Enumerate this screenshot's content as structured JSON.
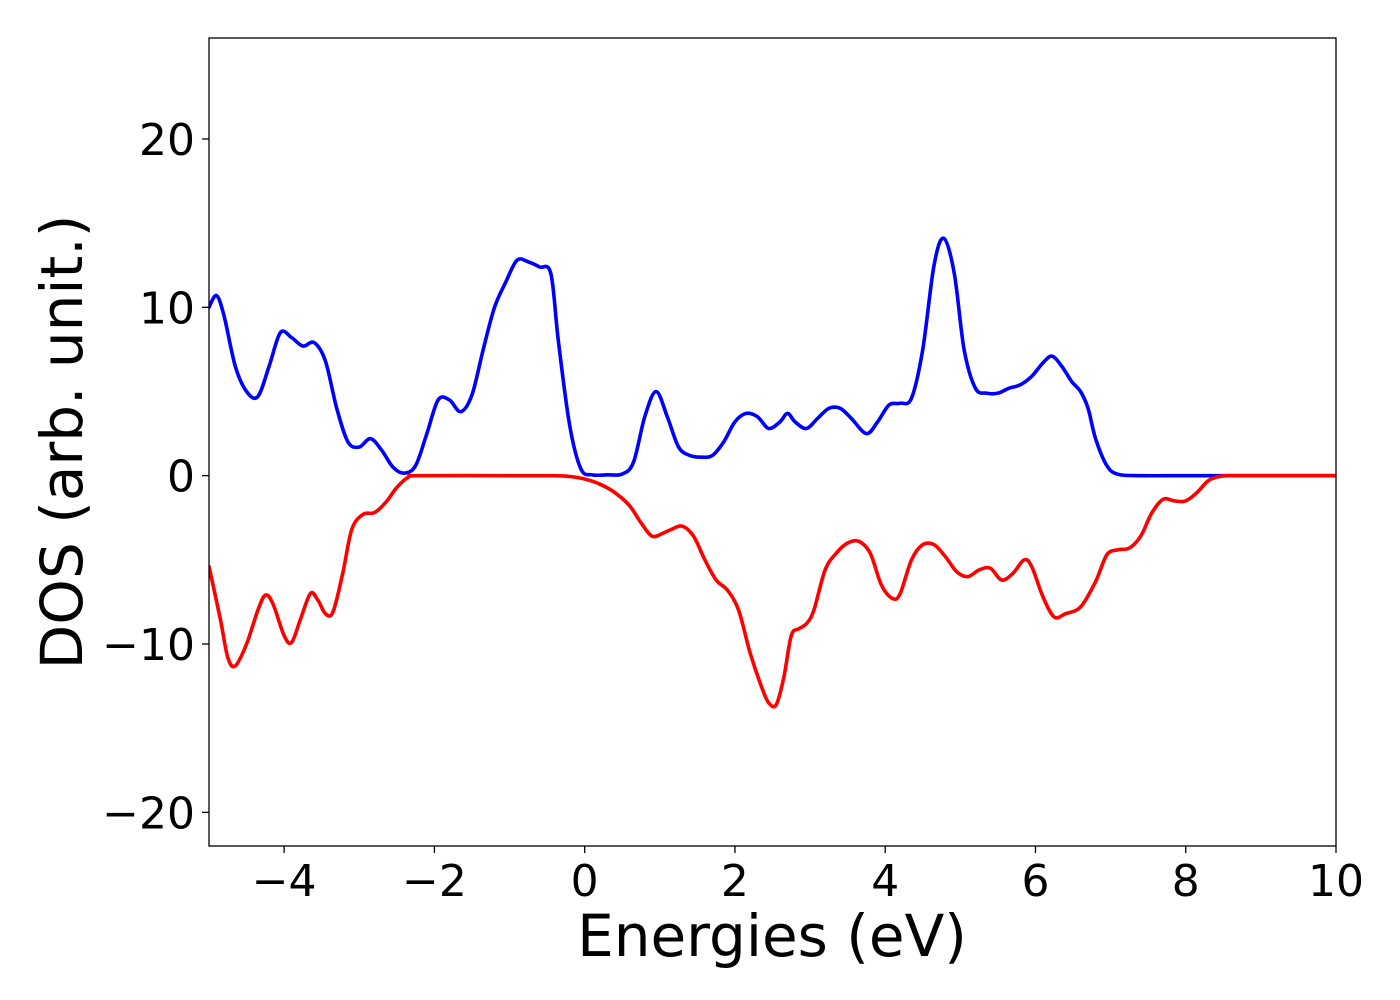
{
  "chart_data": {
    "type": "line",
    "title": "",
    "xlabel": "Energies (eV)",
    "ylabel": "DOS (arb. unit.)",
    "xlim": [
      -5,
      10
    ],
    "ylim": [
      -22,
      26
    ],
    "x_ticks": [
      {
        "value": -4,
        "label": "−4"
      },
      {
        "value": -2,
        "label": "−2"
      },
      {
        "value": 0,
        "label": "0"
      },
      {
        "value": 2,
        "label": "2"
      },
      {
        "value": 4,
        "label": "4"
      },
      {
        "value": 6,
        "label": "6"
      },
      {
        "value": 8,
        "label": "8"
      },
      {
        "value": 10,
        "label": "10"
      }
    ],
    "y_ticks": [
      {
        "value": 20,
        "label": "20"
      },
      {
        "value": 10,
        "label": "10"
      },
      {
        "value": 0,
        "label": "0"
      },
      {
        "value": -10,
        "label": "−10"
      },
      {
        "value": -20,
        "label": "−20"
      }
    ],
    "grid": false,
    "legend": "none",
    "series": [
      {
        "color": "#0000ff",
        "points": [
          [
            -5.0,
            10.0
          ],
          [
            -4.9,
            10.7
          ],
          [
            -4.8,
            9.5
          ],
          [
            -4.65,
            6.5
          ],
          [
            -4.5,
            5.0
          ],
          [
            -4.35,
            4.7
          ],
          [
            -4.2,
            6.5
          ],
          [
            -4.05,
            8.5
          ],
          [
            -3.9,
            8.2
          ],
          [
            -3.75,
            7.7
          ],
          [
            -3.6,
            7.9
          ],
          [
            -3.45,
            6.8
          ],
          [
            -3.3,
            4.0
          ],
          [
            -3.15,
            2.0
          ],
          [
            -3.0,
            1.7
          ],
          [
            -2.85,
            2.2
          ],
          [
            -2.7,
            1.5
          ],
          [
            -2.55,
            0.5
          ],
          [
            -2.4,
            0.15
          ],
          [
            -2.25,
            0.6
          ],
          [
            -2.1,
            2.5
          ],
          [
            -1.95,
            4.5
          ],
          [
            -1.8,
            4.5
          ],
          [
            -1.65,
            3.8
          ],
          [
            -1.5,
            4.8
          ],
          [
            -1.35,
            7.5
          ],
          [
            -1.2,
            10.0
          ],
          [
            -1.05,
            11.5
          ],
          [
            -0.9,
            12.8
          ],
          [
            -0.75,
            12.7
          ],
          [
            -0.6,
            12.4
          ],
          [
            -0.45,
            12.0
          ],
          [
            -0.35,
            8.0
          ],
          [
            -0.2,
            3.0
          ],
          [
            -0.05,
            0.4
          ],
          [
            0.1,
            0.05
          ],
          [
            0.3,
            0.05
          ],
          [
            0.5,
            0.1
          ],
          [
            0.65,
            0.8
          ],
          [
            0.8,
            3.5
          ],
          [
            0.95,
            5.0
          ],
          [
            1.1,
            3.5
          ],
          [
            1.25,
            1.7
          ],
          [
            1.4,
            1.2
          ],
          [
            1.55,
            1.1
          ],
          [
            1.7,
            1.2
          ],
          [
            1.85,
            2.0
          ],
          [
            2.0,
            3.2
          ],
          [
            2.15,
            3.7
          ],
          [
            2.3,
            3.5
          ],
          [
            2.45,
            2.8
          ],
          [
            2.6,
            3.2
          ],
          [
            2.7,
            3.7
          ],
          [
            2.8,
            3.2
          ],
          [
            2.95,
            2.8
          ],
          [
            3.1,
            3.4
          ],
          [
            3.25,
            4.0
          ],
          [
            3.4,
            4.0
          ],
          [
            3.55,
            3.4
          ],
          [
            3.75,
            2.5
          ],
          [
            3.9,
            3.2
          ],
          [
            4.05,
            4.2
          ],
          [
            4.2,
            4.3
          ],
          [
            4.35,
            4.6
          ],
          [
            4.5,
            7.5
          ],
          [
            4.65,
            12.5
          ],
          [
            4.78,
            14.1
          ],
          [
            4.92,
            12.0
          ],
          [
            5.05,
            7.5
          ],
          [
            5.2,
            5.2
          ],
          [
            5.35,
            4.9
          ],
          [
            5.5,
            4.9
          ],
          [
            5.65,
            5.2
          ],
          [
            5.8,
            5.4
          ],
          [
            5.95,
            5.9
          ],
          [
            6.1,
            6.7
          ],
          [
            6.22,
            7.1
          ],
          [
            6.35,
            6.5
          ],
          [
            6.48,
            5.6
          ],
          [
            6.6,
            5.0
          ],
          [
            6.7,
            4.0
          ],
          [
            6.8,
            2.2
          ],
          [
            6.95,
            0.6
          ],
          [
            7.1,
            0.08
          ],
          [
            7.4,
            0.0
          ],
          [
            8.0,
            0.0
          ],
          [
            9.0,
            0.0
          ],
          [
            10.0,
            0.0
          ]
        ]
      },
      {
        "color": "#ff0000",
        "points": [
          [
            -5.0,
            -5.4
          ],
          [
            -4.85,
            -8.5
          ],
          [
            -4.75,
            -10.8
          ],
          [
            -4.65,
            -11.3
          ],
          [
            -4.5,
            -10.0
          ],
          [
            -4.35,
            -8.0
          ],
          [
            -4.25,
            -7.1
          ],
          [
            -4.15,
            -7.6
          ],
          [
            -4.0,
            -9.5
          ],
          [
            -3.9,
            -9.9
          ],
          [
            -3.78,
            -8.5
          ],
          [
            -3.65,
            -7.0
          ],
          [
            -3.55,
            -7.4
          ],
          [
            -3.45,
            -8.2
          ],
          [
            -3.35,
            -8.1
          ],
          [
            -3.22,
            -5.8
          ],
          [
            -3.1,
            -3.2
          ],
          [
            -2.95,
            -2.3
          ],
          [
            -2.8,
            -2.2
          ],
          [
            -2.65,
            -1.6
          ],
          [
            -2.5,
            -0.7
          ],
          [
            -2.35,
            -0.1
          ],
          [
            -2.2,
            0.0
          ],
          [
            -1.0,
            0.0
          ],
          [
            -0.4,
            0.0
          ],
          [
            -0.2,
            -0.05
          ],
          [
            0.0,
            -0.2
          ],
          [
            0.2,
            -0.5
          ],
          [
            0.4,
            -1.0
          ],
          [
            0.6,
            -1.8
          ],
          [
            0.75,
            -2.8
          ],
          [
            0.9,
            -3.6
          ],
          [
            1.05,
            -3.4
          ],
          [
            1.15,
            -3.2
          ],
          [
            1.3,
            -3.0
          ],
          [
            1.45,
            -3.6
          ],
          [
            1.6,
            -5.0
          ],
          [
            1.75,
            -6.2
          ],
          [
            1.9,
            -6.8
          ],
          [
            2.05,
            -8.0
          ],
          [
            2.2,
            -10.5
          ],
          [
            2.35,
            -12.5
          ],
          [
            2.45,
            -13.5
          ],
          [
            2.55,
            -13.6
          ],
          [
            2.65,
            -12.0
          ],
          [
            2.75,
            -9.5
          ],
          [
            2.85,
            -9.1
          ],
          [
            2.95,
            -8.8
          ],
          [
            3.05,
            -8.0
          ],
          [
            3.2,
            -5.6
          ],
          [
            3.35,
            -4.6
          ],
          [
            3.5,
            -4.0
          ],
          [
            3.65,
            -3.9
          ],
          [
            3.8,
            -4.6
          ],
          [
            3.95,
            -6.5
          ],
          [
            4.1,
            -7.3
          ],
          [
            4.2,
            -7.0
          ],
          [
            4.35,
            -5.0
          ],
          [
            4.5,
            -4.1
          ],
          [
            4.65,
            -4.1
          ],
          [
            4.8,
            -4.8
          ],
          [
            4.95,
            -5.7
          ],
          [
            5.1,
            -6.0
          ],
          [
            5.25,
            -5.6
          ],
          [
            5.4,
            -5.5
          ],
          [
            5.55,
            -6.2
          ],
          [
            5.7,
            -5.8
          ],
          [
            5.85,
            -5.0
          ],
          [
            5.95,
            -5.4
          ],
          [
            6.1,
            -7.2
          ],
          [
            6.25,
            -8.4
          ],
          [
            6.4,
            -8.2
          ],
          [
            6.6,
            -7.8
          ],
          [
            6.8,
            -6.3
          ],
          [
            6.95,
            -4.7
          ],
          [
            7.1,
            -4.4
          ],
          [
            7.25,
            -4.3
          ],
          [
            7.4,
            -3.6
          ],
          [
            7.55,
            -2.2
          ],
          [
            7.7,
            -1.4
          ],
          [
            7.85,
            -1.5
          ],
          [
            8.0,
            -1.5
          ],
          [
            8.15,
            -1.0
          ],
          [
            8.3,
            -0.3
          ],
          [
            8.45,
            -0.05
          ],
          [
            8.6,
            0.0
          ],
          [
            9.0,
            0.0
          ],
          [
            10.0,
            0.0
          ]
        ]
      }
    ]
  }
}
